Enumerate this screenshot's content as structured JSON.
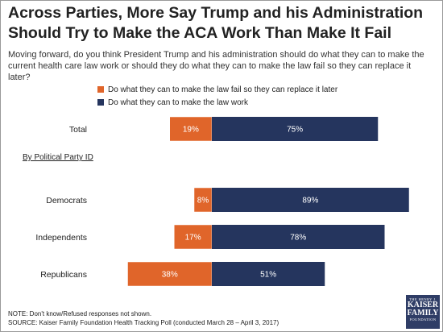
{
  "header": {
    "title": "Across Parties, More Say Trump and his Administration Should Try to Make the ACA Work Than Make It Fail",
    "question": "Moving forward, do you think President Trump and his administration should do what they can to make the current health care law work or should they do what they can to make the law fail so they can replace it later?"
  },
  "section_label": "By Political Party ID",
  "footer": {
    "note": "NOTE: Don't know/Refused responses not shown.",
    "source": "SOURCE: Kaiser Family Foundation Health Tracking Poll (conducted March 28 – April 3, 2017)"
  },
  "logo": {
    "line1": "THE HENRY J.",
    "line2": "KAISER",
    "line3": "FAMILY",
    "line4": "FOUNDATION"
  },
  "colors": {
    "fail": "#e0652a",
    "work": "#25355e"
  },
  "chart_data": {
    "type": "bar",
    "orientation": "horizontal-diverging",
    "categories": [
      "Total",
      "Democrats",
      "Independents",
      "Republicans"
    ],
    "series": [
      {
        "name": "Do what they can to make the law fail so they can replace it later",
        "values": [
          19,
          8,
          17,
          38
        ],
        "color": "#e0652a"
      },
      {
        "name": "Do what they can to make the law work",
        "values": [
          75,
          89,
          78,
          51
        ],
        "color": "#25355e"
      }
    ],
    "value_suffix": "%",
    "legend_position": "top"
  }
}
